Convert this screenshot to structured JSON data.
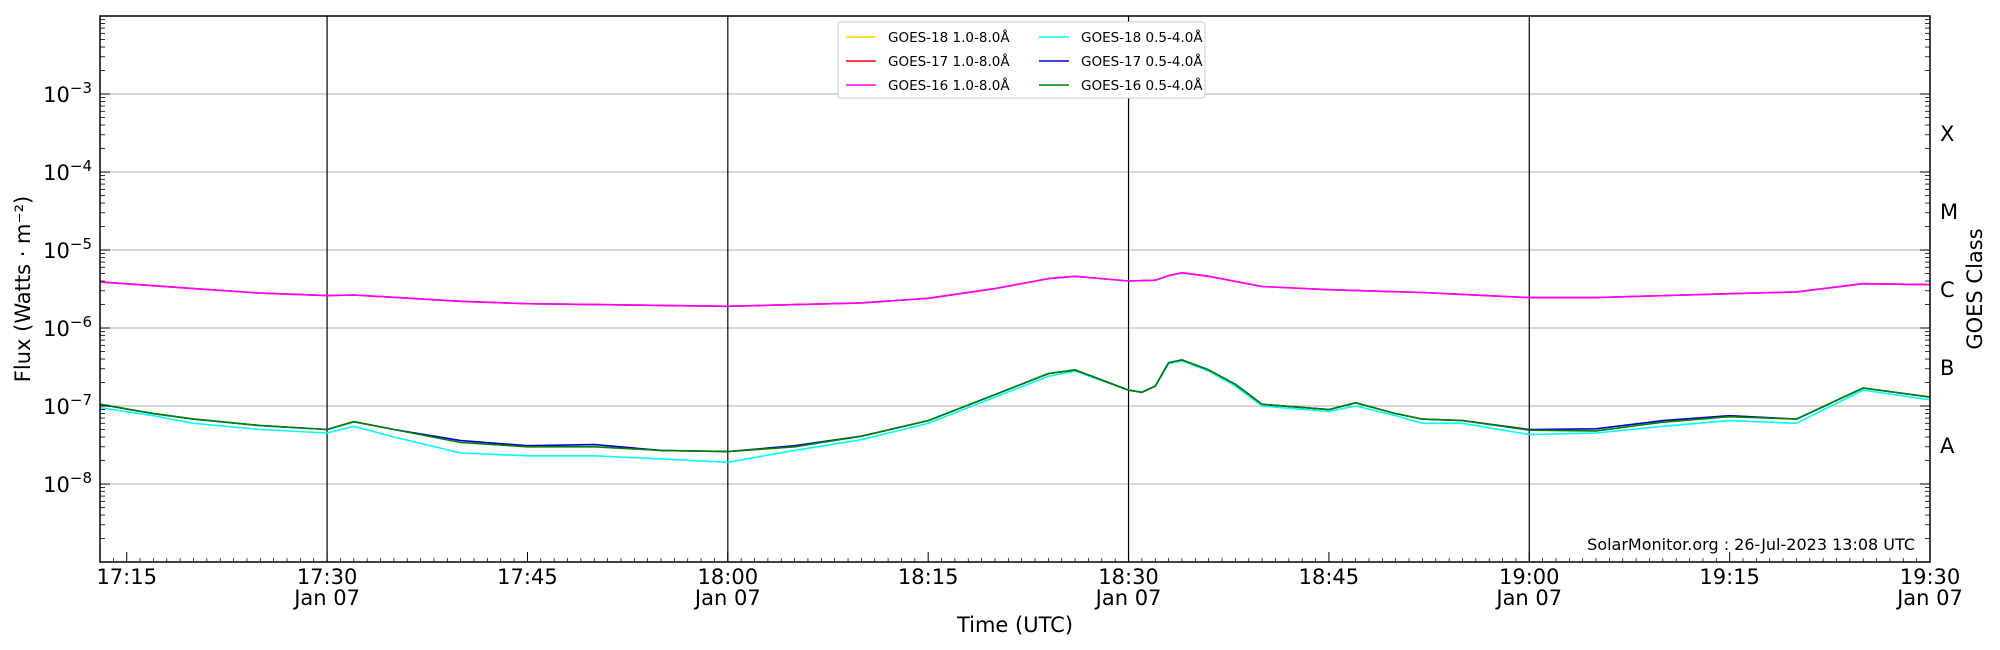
{
  "chart_data": {
    "type": "line",
    "xlabel": "Time (UTC)",
    "ylabel": "Flux (Watts · m⁻²)",
    "ylabel_right": "GOES Class",
    "yscale": "log",
    "ylim": [
      1e-09,
      0.01
    ],
    "xlim": [
      "17:13",
      "19:30"
    ],
    "x_ticks": [
      {
        "t": "17:15",
        "label": "17:15",
        "sub": ""
      },
      {
        "t": "17:30",
        "label": "17:30",
        "sub": "Jan 07"
      },
      {
        "t": "17:45",
        "label": "17:45",
        "sub": ""
      },
      {
        "t": "18:00",
        "label": "18:00",
        "sub": "Jan 07"
      },
      {
        "t": "18:15",
        "label": "18:15",
        "sub": ""
      },
      {
        "t": "18:30",
        "label": "18:30",
        "sub": "Jan 07"
      },
      {
        "t": "18:45",
        "label": "18:45",
        "sub": ""
      },
      {
        "t": "19:00",
        "label": "19:00",
        "sub": "Jan 07"
      },
      {
        "t": "19:15",
        "label": "19:15",
        "sub": ""
      },
      {
        "t": "19:30",
        "label": "19:30",
        "sub": "Jan 07"
      }
    ],
    "y_ticks": [
      {
        "v": 0.001,
        "base": "10",
        "exp": "−3"
      },
      {
        "v": 0.0001,
        "base": "10",
        "exp": "−4"
      },
      {
        "v": 1e-05,
        "base": "10",
        "exp": "−5"
      },
      {
        "v": 1e-06,
        "base": "10",
        "exp": "−6"
      },
      {
        "v": 1e-07,
        "base": "10",
        "exp": "−7"
      },
      {
        "v": 1e-08,
        "base": "10",
        "exp": "−8"
      }
    ],
    "goes_classes": [
      {
        "label": "X",
        "v": 0.000316
      },
      {
        "label": "M",
        "v": 3.16e-05
      },
      {
        "label": "C",
        "v": 3.16e-06
      },
      {
        "label": "B",
        "v": 3.16e-07
      },
      {
        "label": "A",
        "v": 3.16e-08
      }
    ],
    "grid": true,
    "vlines": [
      "17:30",
      "18:00",
      "18:30",
      "19:00"
    ],
    "legend_position": "top-center",
    "annotation": "SolarMonitor.org : 26-Jul-2023 13:08 UTC",
    "series": [
      {
        "name": "GOES-18 1.0-8.0Å",
        "color": "#ffd700",
        "visible": false,
        "x": [],
        "y": []
      },
      {
        "name": "GOES-17 1.0-8.0Å",
        "color": "#ff0000",
        "visible": true,
        "x": [
          "17:13",
          "17:20",
          "17:25",
          "17:30",
          "17:32",
          "17:40",
          "17:45",
          "17:55",
          "18:00",
          "18:10",
          "18:15",
          "18:20",
          "18:24",
          "18:26",
          "18:30",
          "18:32",
          "18:33",
          "18:34",
          "18:36",
          "18:40",
          "18:45",
          "18:52",
          "18:55",
          "19:00",
          "19:05",
          "19:15",
          "19:20",
          "19:25",
          "19:30"
        ],
        "y": [
          3.9e-06,
          3.2e-06,
          2.8e-06,
          2.6e-06,
          2.65e-06,
          2.2e-06,
          2.05e-06,
          1.95e-06,
          1.9e-06,
          2.1e-06,
          2.4e-06,
          3.2e-06,
          4.3e-06,
          4.6e-06,
          4e-06,
          4.1e-06,
          4.7e-06,
          5.1e-06,
          4.6e-06,
          3.4e-06,
          3.1e-06,
          2.85e-06,
          2.7e-06,
          2.45e-06,
          2.45e-06,
          2.75e-06,
          2.9e-06,
          3.7e-06,
          3.6e-06
        ]
      },
      {
        "name": "GOES-16 1.0-8.0Å",
        "color": "#ff00ff",
        "visible": true,
        "x": [
          "17:13",
          "17:20",
          "17:25",
          "17:30",
          "17:32",
          "17:40",
          "17:45",
          "17:55",
          "18:00",
          "18:10",
          "18:15",
          "18:20",
          "18:24",
          "18:26",
          "18:30",
          "18:32",
          "18:33",
          "18:34",
          "18:36",
          "18:40",
          "18:45",
          "18:52",
          "18:55",
          "19:00",
          "19:05",
          "19:15",
          "19:20",
          "19:25",
          "19:30"
        ],
        "y": [
          3.9e-06,
          3.2e-06,
          2.8e-06,
          2.6e-06,
          2.65e-06,
          2.2e-06,
          2.05e-06,
          1.95e-06,
          1.9e-06,
          2.1e-06,
          2.4e-06,
          3.2e-06,
          4.3e-06,
          4.6e-06,
          4e-06,
          4.1e-06,
          4.7e-06,
          5.1e-06,
          4.6e-06,
          3.4e-06,
          3.1e-06,
          2.85e-06,
          2.7e-06,
          2.45e-06,
          2.45e-06,
          2.75e-06,
          2.9e-06,
          3.7e-06,
          3.6e-06
        ]
      },
      {
        "name": "GOES-18 0.5-4.0Å",
        "color": "#00ffff",
        "visible": true,
        "x": [
          "17:13",
          "17:17",
          "17:20",
          "17:25",
          "17:30",
          "17:32",
          "17:35",
          "17:40",
          "17:45",
          "17:50",
          "17:55",
          "18:00",
          "18:05",
          "18:10",
          "18:15",
          "18:20",
          "18:24",
          "18:26",
          "18:30",
          "18:31",
          "18:32",
          "18:33",
          "18:34",
          "18:36",
          "18:38",
          "18:40",
          "18:45",
          "18:47",
          "18:50",
          "18:52",
          "18:55",
          "19:00",
          "19:05",
          "19:10",
          "19:15",
          "19:20",
          "19:25",
          "19:30"
        ],
        "y": [
          9.5e-08,
          7.5e-08,
          6e-08,
          5e-08,
          4.5e-08,
          5.5e-08,
          4e-08,
          2.5e-08,
          2.3e-08,
          2.3e-08,
          2.1e-08,
          1.9e-08,
          2.7e-08,
          3.7e-08,
          6e-08,
          1.3e-07,
          2.4e-07,
          2.8e-07,
          1.6e-07,
          1.5e-07,
          1.8e-07,
          3.5e-07,
          3.8e-07,
          2.8e-07,
          1.8e-07,
          1e-07,
          8.5e-08,
          1e-07,
          7.5e-08,
          6e-08,
          6e-08,
          4.3e-08,
          4.5e-08,
          5.5e-08,
          6.5e-08,
          6e-08,
          1.6e-07,
          1.2e-07
        ]
      },
      {
        "name": "GOES-17 0.5-4.0Å",
        "color": "#0000cd",
        "visible": true,
        "x": [
          "17:13",
          "17:17",
          "17:20",
          "17:25",
          "17:30",
          "17:32",
          "17:35",
          "17:40",
          "17:45",
          "17:50",
          "17:55",
          "18:00",
          "18:05",
          "18:10",
          "18:15",
          "18:20",
          "18:24",
          "18:26",
          "18:30",
          "18:31",
          "18:32",
          "18:33",
          "18:34",
          "18:36",
          "18:38",
          "18:40",
          "18:45",
          "18:47",
          "18:50",
          "18:52",
          "18:55",
          "19:00",
          "19:05",
          "19:10",
          "19:15",
          "19:20",
          "19:25",
          "19:30"
        ],
        "y": [
          1.05e-07,
          8e-08,
          6.8e-08,
          5.6e-08,
          5e-08,
          6.3e-08,
          5e-08,
          3.6e-08,
          3.1e-08,
          3.2e-08,
          2.7e-08,
          2.6e-08,
          3.1e-08,
          4.1e-08,
          6.5e-08,
          1.4e-07,
          2.6e-07,
          2.9e-07,
          1.6e-07,
          1.5e-07,
          1.8e-07,
          3.6e-07,
          3.9e-07,
          2.9e-07,
          1.9e-07,
          1.05e-07,
          9e-08,
          1.1e-07,
          8e-08,
          6.8e-08,
          6.5e-08,
          5e-08,
          5.1e-08,
          6.5e-08,
          7.5e-08,
          6.8e-08,
          1.7e-07,
          1.3e-07
        ]
      },
      {
        "name": "GOES-16 0.5-4.0Å",
        "color": "#008000",
        "visible": true,
        "x": [
          "17:13",
          "17:17",
          "17:20",
          "17:25",
          "17:30",
          "17:32",
          "17:35",
          "17:40",
          "17:45",
          "17:50",
          "17:55",
          "18:00",
          "18:05",
          "18:10",
          "18:15",
          "18:20",
          "18:24",
          "18:26",
          "18:30",
          "18:31",
          "18:32",
          "18:33",
          "18:34",
          "18:36",
          "18:38",
          "18:40",
          "18:45",
          "18:47",
          "18:50",
          "18:52",
          "18:55",
          "19:00",
          "19:05",
          "19:10",
          "19:15",
          "19:20",
          "19:25",
          "19:30"
        ],
        "y": [
          1.05e-07,
          8e-08,
          6.8e-08,
          5.6e-08,
          5e-08,
          6.3e-08,
          5e-08,
          3.4e-08,
          3e-08,
          3e-08,
          2.7e-08,
          2.6e-08,
          3e-08,
          4.1e-08,
          6.5e-08,
          1.4e-07,
          2.6e-07,
          2.9e-07,
          1.6e-07,
          1.5e-07,
          1.8e-07,
          3.6e-07,
          3.9e-07,
          2.9e-07,
          1.9e-07,
          1.05e-07,
          9e-08,
          1.1e-07,
          8e-08,
          6.8e-08,
          6.5e-08,
          4.9e-08,
          4.8e-08,
          6.2e-08,
          7.3e-08,
          6.8e-08,
          1.7e-07,
          1.3e-07
        ]
      }
    ]
  }
}
